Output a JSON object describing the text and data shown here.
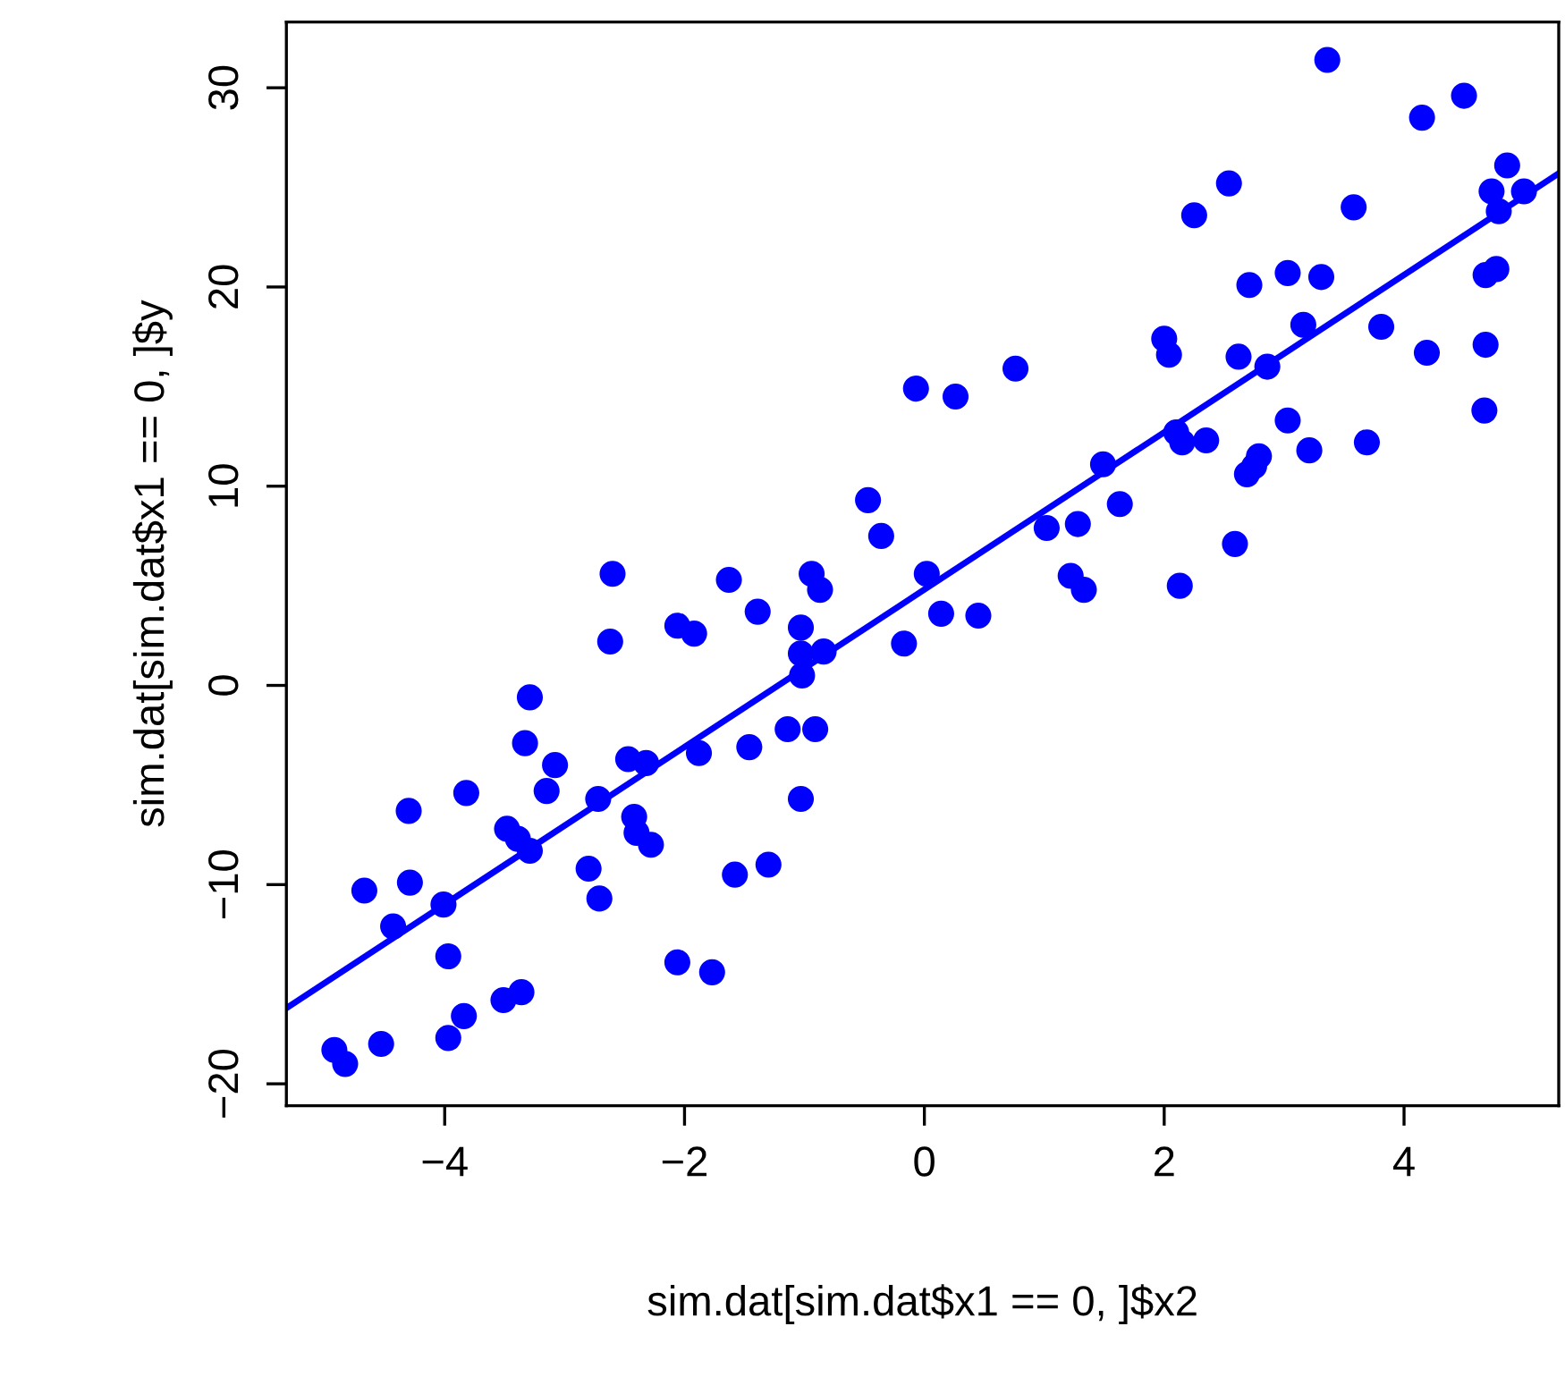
{
  "chart_data": {
    "type": "scatter",
    "xlabel": "sim.dat[sim.dat$x1 == 0, ]$x2",
    "ylabel": "sim.dat[sim.dat$x1 == 0, ]$y",
    "xlim": [
      -5.32,
      5.29
    ],
    "ylim": [
      -21.1,
      33.3
    ],
    "xticks": [
      {
        "value": -4,
        "label": "−4"
      },
      {
        "value": -2,
        "label": "−2"
      },
      0,
      2,
      4
    ],
    "yticks": [
      {
        "value": -20,
        "label": "−20"
      },
      {
        "value": -10,
        "label": "−10"
      },
      0,
      10,
      20,
      30
    ],
    "grid": false,
    "series": [
      {
        "color": "#0000ff",
        "marker": "circle",
        "x": [
          3.36,
          4.5,
          4.15,
          2.25,
          2.54,
          3.58,
          4.86,
          4.73,
          5.0,
          4.79,
          4.68,
          4.77,
          2.71,
          3.03,
          3.31,
          3.16,
          3.81,
          4.19,
          4.68,
          4.67,
          2.0,
          2.04,
          2.62,
          2.86,
          3.69,
          3.03,
          3.21,
          2.35,
          2.1,
          2.15,
          1.63,
          1.49,
          2.79,
          2.75,
          2.69,
          2.59,
          2.13,
          1.02,
          1.28,
          1.22,
          1.33,
          0.45,
          0.14,
          0.02,
          -0.17,
          -0.07,
          0.26,
          0.76,
          -0.36,
          -0.47,
          -0.87,
          -0.94,
          -0.84,
          -1.03,
          -1.03,
          -1.02,
          -1.14,
          -0.91,
          -1.03,
          -1.63,
          -1.39,
          -2.06,
          -1.92,
          -2.6,
          -2.62,
          -3.29,
          -1.46,
          -1.88,
          -2.32,
          -2.47,
          -2.42,
          -2.4,
          -2.28,
          -1.58,
          -1.3,
          -2.72,
          -2.8,
          -2.71,
          -2.06,
          -1.77,
          -3.33,
          -3.08,
          -3.15,
          -3.48,
          -3.29,
          -3.39,
          -3.82,
          -4.3,
          -4.29,
          -4.67,
          -4.43,
          -4.01,
          -3.97,
          -3.84,
          -3.97,
          -3.51,
          -3.36,
          -4.53,
          -4.92,
          -4.83
        ],
        "values": [
          31.4,
          29.6,
          28.5,
          23.6,
          25.2,
          24.0,
          26.1,
          24.8,
          24.8,
          23.8,
          20.6,
          20.9,
          20.1,
          20.7,
          20.5,
          18.1,
          18.0,
          16.7,
          17.1,
          13.8,
          17.4,
          16.6,
          16.5,
          16.0,
          12.2,
          13.3,
          11.8,
          12.3,
          12.7,
          12.2,
          9.1,
          11.1,
          11.5,
          11.0,
          10.6,
          7.1,
          5.0,
          7.9,
          8.1,
          5.5,
          4.8,
          3.5,
          3.6,
          5.6,
          2.1,
          14.9,
          14.5,
          15.9,
          7.5,
          9.3,
          4.8,
          5.6,
          1.7,
          2.9,
          1.6,
          0.5,
          -2.2,
          -2.2,
          -5.7,
          5.3,
          3.7,
          3.0,
          2.6,
          5.6,
          2.2,
          -0.6,
          -3.1,
          -3.4,
          -3.9,
          -3.7,
          -6.6,
          -7.4,
          -8.0,
          -9.5,
          -9.0,
          -5.7,
          -9.2,
          -10.7,
          -13.9,
          -14.4,
          -2.9,
          -4.0,
          -5.3,
          -7.2,
          -8.3,
          -7.7,
          -5.4,
          -6.3,
          -9.9,
          -10.3,
          -12.1,
          -11.0,
          -13.6,
          -16.6,
          -17.7,
          -15.8,
          -15.4,
          -18.0,
          -18.3,
          -19.0
        ]
      },
      {
        "type": "line",
        "color": "#0000ff",
        "x": [
          -5.32,
          5.29
        ],
        "values": [
          -16.2,
          25.7
        ]
      }
    ]
  }
}
